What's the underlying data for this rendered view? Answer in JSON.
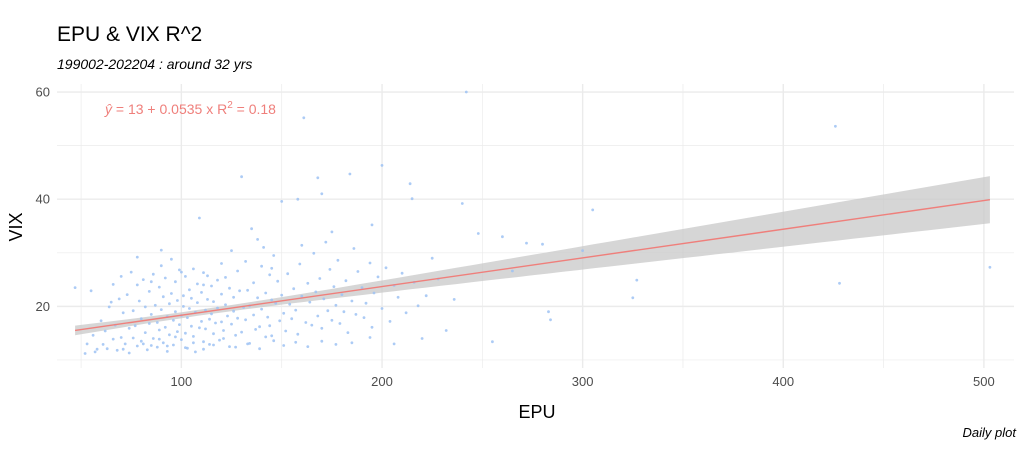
{
  "header": {
    "title": "EPU & VIX R^2",
    "subtitle": "199002-202204 : around 32 yrs"
  },
  "footer": {
    "caption": "Daily plot"
  },
  "chart_data": {
    "type": "scatter",
    "xlabel": "EPU",
    "ylabel": "VIX",
    "xlim": [
      38,
      515
    ],
    "ylim": [
      8.5,
      61.5
    ],
    "x_ticks": [
      100,
      200,
      300,
      400,
      500
    ],
    "y_ticks": [
      20,
      40,
      60
    ],
    "grid": true,
    "equation_label": {
      "yhat": "ŷ",
      "text": " = 13 + 0.0535 x   R",
      "sup": "2",
      "tail": " = 0.18"
    },
    "regression": {
      "intercept": 13,
      "slope": 0.0535,
      "r_squared": 0.18,
      "x_range": [
        47,
        503
      ],
      "band_lo_at_end": 35.5,
      "band_hi_at_end": 44.3
    },
    "colors": {
      "points": "#9ec2f3",
      "line": "#ef7f7b",
      "band": "#c8c8c8",
      "grid": "#ebebeb"
    },
    "points": [
      [
        47,
        23.5
      ],
      [
        52,
        11.2
      ],
      [
        55,
        22.9
      ],
      [
        57,
        11.5
      ],
      [
        58,
        12.0
      ],
      [
        60,
        17.3
      ],
      [
        62,
        15.4
      ],
      [
        63,
        12.1
      ],
      [
        64,
        19.9
      ],
      [
        65,
        20.8
      ],
      [
        66,
        24.1
      ],
      [
        67,
        16.5
      ],
      [
        68,
        11.8
      ],
      [
        69,
        21.4
      ],
      [
        70,
        14.2
      ],
      [
        70,
        25.6
      ],
      [
        71,
        18.8
      ],
      [
        72,
        13.0
      ],
      [
        73,
        22.2
      ],
      [
        74,
        15.9
      ],
      [
        74,
        11.3
      ],
      [
        75,
        26.4
      ],
      [
        76,
        19.2
      ],
      [
        77,
        16.4
      ],
      [
        78,
        24.0
      ],
      [
        78,
        12.6
      ],
      [
        79,
        21.0
      ],
      [
        80,
        17.7
      ],
      [
        80,
        13.5
      ],
      [
        81,
        25.0
      ],
      [
        82,
        15.1
      ],
      [
        82,
        19.9
      ],
      [
        83,
        11.9
      ],
      [
        84,
        22.8
      ],
      [
        84,
        16.8
      ],
      [
        85,
        18.5
      ],
      [
        86,
        14.0
      ],
      [
        86,
        26.0
      ],
      [
        87,
        20.2
      ],
      [
        88,
        12.4
      ],
      [
        88,
        17.0
      ],
      [
        89,
        23.6
      ],
      [
        89,
        15.6
      ],
      [
        90,
        19.4
      ],
      [
        90,
        30.5
      ],
      [
        91,
        13.2
      ],
      [
        91,
        21.8
      ],
      [
        92,
        16.1
      ],
      [
        92,
        25.3
      ],
      [
        93,
        18.1
      ],
      [
        93,
        11.6
      ],
      [
        94,
        20.5
      ],
      [
        94,
        14.7
      ],
      [
        95,
        28.8
      ],
      [
        95,
        22.4
      ],
      [
        96,
        17.4
      ],
      [
        96,
        12.8
      ],
      [
        97,
        24.6
      ],
      [
        97,
        19.0
      ],
      [
        98,
        15.3
      ],
      [
        98,
        21.1
      ],
      [
        99,
        16.6
      ],
      [
        99,
        26.8
      ],
      [
        100,
        18.3
      ],
      [
        100,
        13.8
      ],
      [
        101,
        22.0
      ],
      [
        101,
        20.0
      ],
      [
        102,
        15.0
      ],
      [
        102,
        25.6
      ],
      [
        103,
        17.9
      ],
      [
        103,
        12.2
      ],
      [
        104,
        23.1
      ],
      [
        104,
        19.6
      ],
      [
        105,
        16.3
      ],
      [
        105,
        21.5
      ],
      [
        106,
        14.4
      ],
      [
        106,
        27.0
      ],
      [
        107,
        18.9
      ],
      [
        107,
        11.5
      ],
      [
        108,
        24.2
      ],
      [
        108,
        20.7
      ],
      [
        109,
        16.0
      ],
      [
        109,
        36.5
      ],
      [
        110,
        22.6
      ],
      [
        110,
        17.2
      ],
      [
        111,
        13.4
      ],
      [
        111,
        26.3
      ],
      [
        112,
        19.3
      ],
      [
        112,
        15.8
      ],
      [
        113,
        25.7
      ],
      [
        113,
        21.3
      ],
      [
        114,
        17.6
      ],
      [
        114,
        12.9
      ],
      [
        115,
        23.8
      ],
      [
        115,
        18.6
      ],
      [
        116,
        14.9
      ],
      [
        116,
        20.9
      ],
      [
        117,
        16.9
      ],
      [
        118,
        24.9
      ],
      [
        118,
        19.7
      ],
      [
        119,
        13.7
      ],
      [
        120,
        22.3
      ],
      [
        120,
        17.1
      ],
      [
        121,
        15.5
      ],
      [
        122,
        25.4
      ],
      [
        122,
        20.3
      ],
      [
        123,
        18.2
      ],
      [
        124,
        12.5
      ],
      [
        124,
        23.4
      ],
      [
        125,
        16.7
      ],
      [
        126,
        21.7
      ],
      [
        126,
        19.1
      ],
      [
        127,
        14.6
      ],
      [
        128,
        26.6
      ],
      [
        128,
        17.8
      ],
      [
        129,
        22.9
      ],
      [
        130,
        44.2
      ],
      [
        130,
        15.2
      ],
      [
        131,
        19.8
      ],
      [
        132,
        28.4
      ],
      [
        132,
        17.5
      ],
      [
        133,
        23.0
      ],
      [
        134,
        13.1
      ],
      [
        134,
        20.1
      ],
      [
        135,
        34.5
      ],
      [
        136,
        18.4
      ],
      [
        136,
        24.4
      ],
      [
        137,
        15.7
      ],
      [
        138,
        32.5
      ],
      [
        138,
        21.6
      ],
      [
        139,
        16.2
      ],
      [
        140,
        27.5
      ],
      [
        140,
        19.5
      ],
      [
        141,
        31.0
      ],
      [
        142,
        14.3
      ],
      [
        142,
        22.5
      ],
      [
        143,
        18.0
      ],
      [
        144,
        25.9
      ],
      [
        144,
        16.4
      ],
      [
        145,
        21.2
      ],
      [
        146,
        29.5
      ],
      [
        146,
        13.6
      ],
      [
        147,
        20.6
      ],
      [
        148,
        24.7
      ],
      [
        149,
        17.3
      ],
      [
        150,
        39.6
      ],
      [
        150,
        22.1
      ],
      [
        151,
        18.7
      ],
      [
        152,
        15.4
      ],
      [
        153,
        26.1
      ],
      [
        154,
        20.4
      ],
      [
        155,
        17.7
      ],
      [
        156,
        23.3
      ],
      [
        157,
        19.3
      ],
      [
        158,
        40.0
      ],
      [
        158,
        14.8
      ],
      [
        159,
        27.9
      ],
      [
        160,
        21.9
      ],
      [
        161,
        55.2
      ],
      [
        162,
        17.0
      ],
      [
        163,
        24.3
      ],
      [
        164,
        20.8
      ],
      [
        165,
        16.5
      ],
      [
        166,
        29.9
      ],
      [
        167,
        22.7
      ],
      [
        168,
        44.0
      ],
      [
        168,
        18.2
      ],
      [
        169,
        25.2
      ],
      [
        170,
        41.0
      ],
      [
        170,
        15.9
      ],
      [
        171,
        21.4
      ],
      [
        172,
        32.0
      ],
      [
        173,
        19.2
      ],
      [
        174,
        26.9
      ],
      [
        175,
        17.4
      ],
      [
        176,
        23.7
      ],
      [
        177,
        20.2
      ],
      [
        178,
        28.6
      ],
      [
        179,
        16.8
      ],
      [
        180,
        22.2
      ],
      [
        181,
        19.0
      ],
      [
        182,
        24.8
      ],
      [
        183,
        15.1
      ],
      [
        184,
        44.7
      ],
      [
        185,
        21.0
      ],
      [
        186,
        30.8
      ],
      [
        187,
        18.5
      ],
      [
        188,
        26.5
      ],
      [
        190,
        23.5
      ],
      [
        191,
        17.9
      ],
      [
        192,
        20.6
      ],
      [
        194,
        28.1
      ],
      [
        195,
        16.1
      ],
      [
        196,
        22.5
      ],
      [
        198,
        25.5
      ],
      [
        200,
        46.3
      ],
      [
        200,
        19.6
      ],
      [
        202,
        27.2
      ],
      [
        204,
        17.2
      ],
      [
        206,
        23.9
      ],
      [
        208,
        21.7
      ],
      [
        210,
        26.2
      ],
      [
        212,
        18.8
      ],
      [
        214,
        42.9
      ],
      [
        215,
        40.1
      ],
      [
        216,
        24.5
      ],
      [
        218,
        20.1
      ],
      [
        222,
        22.0
      ],
      [
        225,
        29.0
      ],
      [
        228,
        25.1
      ],
      [
        232,
        15.5
      ],
      [
        236,
        21.3
      ],
      [
        240,
        39.2
      ],
      [
        242,
        60.0
      ],
      [
        248,
        33.6
      ],
      [
        255,
        13.4
      ],
      [
        260,
        33.0
      ],
      [
        265,
        26.6
      ],
      [
        272,
        31.8
      ],
      [
        280,
        31.6
      ],
      [
        283,
        19.0
      ],
      [
        284,
        17.5
      ],
      [
        300,
        30.4
      ],
      [
        305,
        38.0
      ],
      [
        325,
        21.6
      ],
      [
        327,
        24.9
      ],
      [
        426,
        53.6
      ],
      [
        428,
        24.3
      ],
      [
        503,
        27.3
      ],
      [
        53,
        13.0
      ],
      [
        56,
        14.6
      ],
      [
        61,
        12.9
      ],
      [
        66,
        13.9
      ],
      [
        71,
        12.0
      ],
      [
        76,
        14.1
      ],
      [
        81,
        13.0
      ],
      [
        85,
        12.7
      ],
      [
        89,
        13.9
      ],
      [
        93,
        12.6
      ],
      [
        97,
        14.3
      ],
      [
        102,
        12.3
      ],
      [
        106,
        13.2
      ],
      [
        111,
        12.0
      ],
      [
        116,
        12.8
      ],
      [
        121,
        14.0
      ],
      [
        127,
        12.4
      ],
      [
        133,
        13.0
      ],
      [
        139,
        12.1
      ],
      [
        145,
        14.5
      ],
      [
        151,
        12.7
      ],
      [
        157,
        13.3
      ],
      [
        163,
        12.5
      ],
      [
        170,
        13.5
      ],
      [
        177,
        12.9
      ],
      [
        185,
        13.2
      ],
      [
        194,
        14.2
      ],
      [
        206,
        13.0
      ],
      [
        220,
        14.0
      ],
      [
        78,
        29.2
      ],
      [
        100,
        26.4
      ],
      [
        120,
        28.0
      ],
      [
        145,
        27.1
      ],
      [
        160,
        31.4
      ],
      [
        175,
        33.9
      ],
      [
        195,
        35.2
      ],
      [
        85,
        24.6
      ],
      [
        90,
        27.6
      ],
      [
        111,
        24.0
      ],
      [
        125,
        30.4
      ]
    ]
  }
}
